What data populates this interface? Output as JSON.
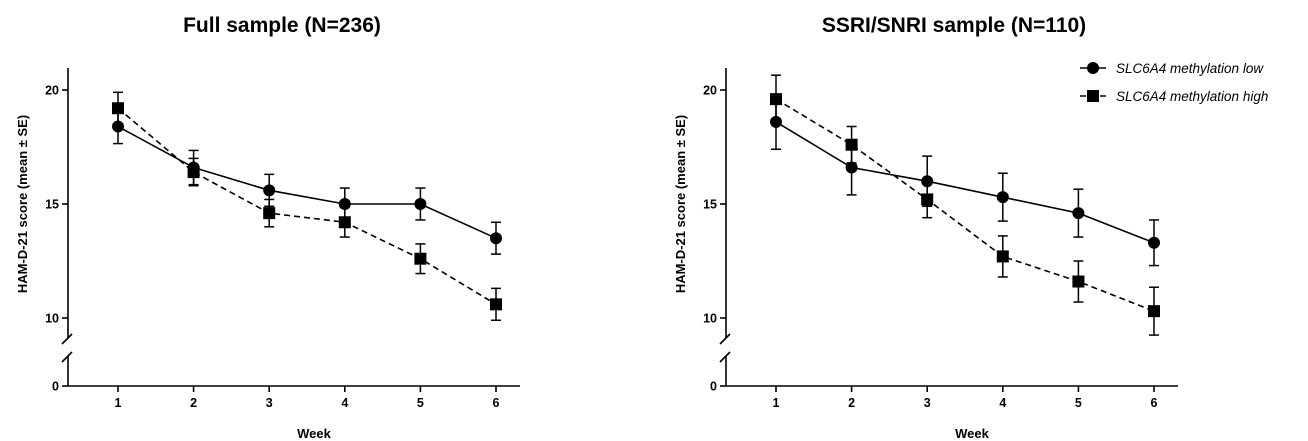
{
  "chart_data": [
    {
      "type": "line",
      "title": "Full sample  (N=236)",
      "xlabel": "Week",
      "ylabel": "HAM-D-21 score (mean ± SE)",
      "x": [
        1,
        2,
        3,
        4,
        5,
        6
      ],
      "x_tick_labels": [
        "1",
        "2",
        "3",
        "4",
        "5",
        "6"
      ],
      "y_ticks": [
        0,
        10,
        15,
        20
      ],
      "y_tick_labels": [
        "0",
        "10",
        "15",
        "20"
      ],
      "ylim": [
        0,
        21
      ],
      "y_axis_break": true,
      "grid": false,
      "series": [
        {
          "name": "SLC6A4 methylation low",
          "marker": "circle",
          "line_style": "solid",
          "values": [
            18.4,
            16.6,
            15.6,
            15.0,
            15.0,
            13.5
          ],
          "se": [
            0.75,
            0.75,
            0.7,
            0.7,
            0.7,
            0.7
          ]
        },
        {
          "name": "SLC6A4 methylation high",
          "marker": "square",
          "line_style": "dashed",
          "values": [
            19.2,
            16.4,
            14.6,
            14.2,
            12.6,
            10.6
          ],
          "se": [
            0.7,
            0.6,
            0.6,
            0.65,
            0.65,
            0.7
          ]
        }
      ]
    },
    {
      "type": "line",
      "title": "SSRI/SNRI sample (N=110)",
      "xlabel": "Week",
      "ylabel": "HAM-D-21 score (mean ± SE)",
      "x": [
        1,
        2,
        3,
        4,
        5,
        6
      ],
      "x_tick_labels": [
        "1",
        "2",
        "3",
        "4",
        "5",
        "6"
      ],
      "y_ticks": [
        0,
        10,
        15,
        20
      ],
      "y_tick_labels": [
        "0",
        "10",
        "15",
        "20"
      ],
      "ylim": [
        0,
        21
      ],
      "y_axis_break": true,
      "grid": false,
      "legend": {
        "position": "top-right",
        "entries": [
          "SLC6A4 methylation low",
          "SLC6A4 methylation high"
        ]
      },
      "series": [
        {
          "name": "SLC6A4 methylation low",
          "marker": "circle",
          "line_style": "solid",
          "values": [
            18.6,
            16.6,
            16.0,
            15.3,
            14.6,
            13.3
          ],
          "se": [
            1.2,
            1.2,
            1.1,
            1.05,
            1.05,
            1.0
          ]
        },
        {
          "name": "SLC6A4 methylation high",
          "marker": "square",
          "line_style": "dashed",
          "values": [
            19.6,
            17.6,
            15.2,
            12.7,
            11.6,
            10.3
          ],
          "se": [
            1.05,
            0.8,
            0.8,
            0.9,
            0.9,
            1.05
          ]
        }
      ]
    }
  ]
}
